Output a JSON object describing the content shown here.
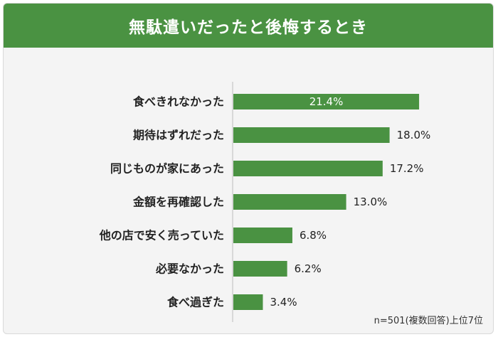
{
  "title": "無駄遣いだったと後悔するとき",
  "footnote": "n=501(複数回答)上位7位",
  "colors": {
    "bar": "#4a9242",
    "title_bg": "#4a9242",
    "panel_bg": "#f4f4f4"
  },
  "chart_data": {
    "type": "bar",
    "orientation": "horizontal",
    "categories": [
      "食べきれなかった",
      "期待はずれだった",
      "同じものが家にあった",
      "金額を再確認した",
      "他の店で安く売っていた",
      "必要なかった",
      "食べ過ぎた"
    ],
    "values": [
      21.4,
      18.0,
      17.2,
      13.0,
      6.8,
      6.2,
      3.4
    ],
    "value_labels": [
      "21.4%",
      "18.0%",
      "17.2%",
      "13.0%",
      "6.8%",
      "6.2%",
      "3.4%"
    ],
    "unit": "%",
    "xlim": [
      0,
      25
    ],
    "grid": false,
    "legend": "none"
  }
}
